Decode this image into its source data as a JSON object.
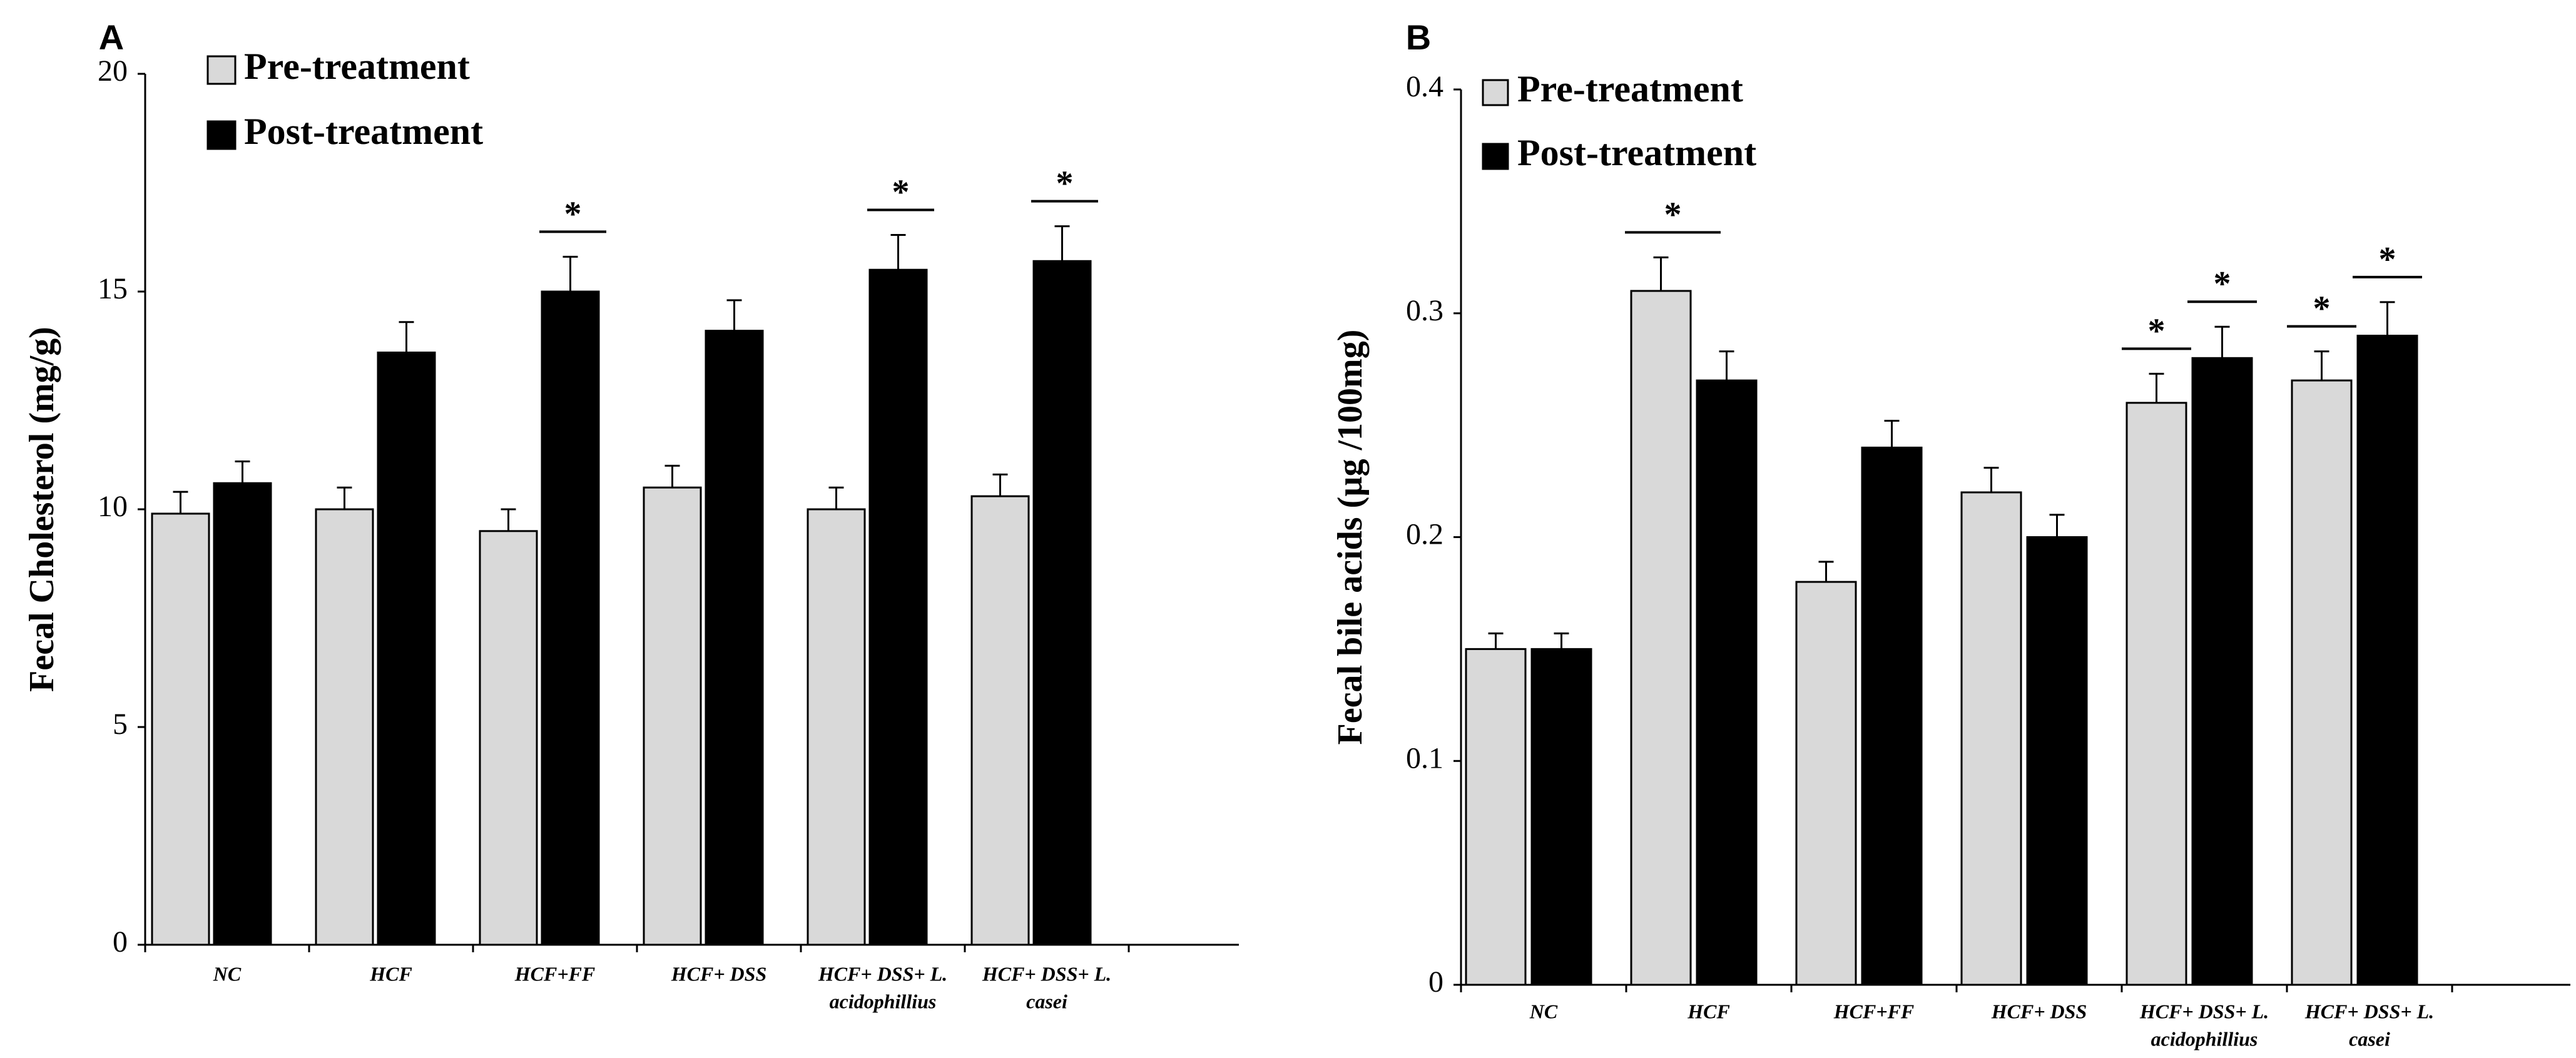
{
  "chart_data": [
    {
      "type": "bar",
      "panel_label": "A",
      "title": "",
      "xlabel": "",
      "ylabel": "Fecal Cholesterol (mg/g)",
      "ylim": [
        0,
        20
      ],
      "yticks": [
        0,
        5,
        10,
        15,
        20
      ],
      "categories": [
        [
          "NC"
        ],
        [
          "HCF"
        ],
        [
          "HCF+FF"
        ],
        [
          "HCF+ DSS"
        ],
        [
          "HCF+ DSS+ L.",
          "acidophillius"
        ],
        [
          "HCF+ DSS+ L.",
          "casei"
        ]
      ],
      "series": [
        {
          "name": "Pre-treatment",
          "color": "#d9d9d9",
          "values": [
            9.9,
            10.0,
            9.5,
            10.5,
            10.0,
            10.3
          ],
          "errors": [
            0.5,
            0.5,
            0.5,
            0.5,
            0.5,
            0.5
          ],
          "significant": [
            false,
            false,
            false,
            false,
            false,
            false
          ]
        },
        {
          "name": "Post-treatment",
          "color": "#000000",
          "values": [
            10.6,
            13.6,
            15.0,
            14.1,
            15.5,
            15.7
          ],
          "errors": [
            0.5,
            0.7,
            0.8,
            0.7,
            0.8,
            0.8
          ],
          "significant": [
            false,
            false,
            true,
            false,
            true,
            true
          ]
        }
      ],
      "significance_mark": "*",
      "legend_position": "top-left"
    },
    {
      "type": "bar",
      "panel_label": "B",
      "title": "",
      "xlabel": "",
      "ylabel": "Fecal bile acids (µg /100mg)",
      "ylim": [
        0,
        0.4
      ],
      "yticks": [
        "0",
        "0.1",
        "0.2",
        "0.3",
        "0.4"
      ],
      "categories": [
        [
          "NC"
        ],
        [
          "HCF"
        ],
        [
          "HCF+FF"
        ],
        [
          "HCF+ DSS"
        ],
        [
          "HCF+ DSS+ L.",
          "acidophillius"
        ],
        [
          "HCF+ DSS+ L.",
          "casei"
        ]
      ],
      "series": [
        {
          "name": "Pre-treatment",
          "color": "#d9d9d9",
          "values": [
            0.15,
            0.31,
            0.18,
            0.22,
            0.26,
            0.27
          ],
          "errors": [
            0.007,
            0.015,
            0.009,
            0.011,
            0.013,
            0.013
          ],
          "significant": [
            false,
            true,
            false,
            false,
            true,
            true
          ]
        },
        {
          "name": "Post-treatment",
          "color": "#000000",
          "values": [
            0.15,
            0.27,
            0.24,
            0.2,
            0.28,
            0.29
          ],
          "errors": [
            0.007,
            0.013,
            0.012,
            0.01,
            0.014,
            0.015
          ],
          "significant": [
            false,
            false,
            false,
            false,
            true,
            true
          ]
        }
      ],
      "significance_mark": "*",
      "legend_position": "top-left"
    }
  ]
}
